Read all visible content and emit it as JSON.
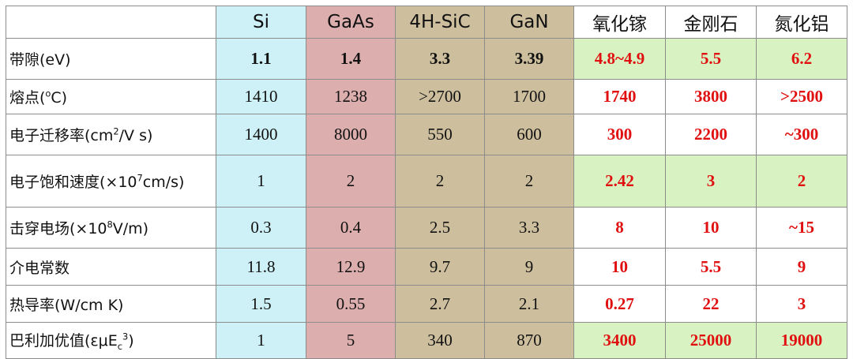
{
  "columns": [
    {
      "name": "Si",
      "style": "si",
      "font": "sans"
    },
    {
      "name": "GaAs",
      "style": "gaas",
      "font": "sans"
    },
    {
      "name": "4H-SiC",
      "style": "sic",
      "font": "sans"
    },
    {
      "name": "GaN",
      "style": "gan",
      "font": "sans"
    },
    {
      "name": "氧化镓",
      "style": "new",
      "font": "cjk"
    },
    {
      "name": "金刚石",
      "style": "new",
      "font": "cjk"
    },
    {
      "name": "氮化铝",
      "style": "new",
      "font": "cjk"
    }
  ],
  "rows": [
    {
      "label": "带隙(eV)",
      "values": [
        "1.1",
        "1.4",
        "3.3",
        "3.39",
        "4.8~4.9",
        "5.5",
        "6.2"
      ],
      "bold": true,
      "new_bg": true
    },
    {
      "label": "熔点(<sup>o</sup>C)",
      "values": [
        "1410",
        "1238",
        ">2700",
        "1700",
        "1740",
        "3800",
        ">2500"
      ],
      "bold": false,
      "new_bg": false
    },
    {
      "label": "电子迁移率(cm<sup>2</sup>/V s)",
      "values": [
        "1400",
        "8000",
        "550",
        "600",
        "300",
        "2200",
        "~300"
      ],
      "bold": false,
      "new_bg": false
    },
    {
      "label": "电子饱和速度(×10<sup>7</sup>cm/s)",
      "values": [
        "1",
        "2",
        "2",
        "2",
        "2.42",
        "3",
        "2"
      ],
      "bold": false,
      "new_bg": true
    },
    {
      "label": "击穿电场(×10<sup>8</sup>V/m)",
      "values": [
        "0.3",
        "0.4",
        "2.5",
        "3.3",
        "8",
        "10",
        "~15"
      ],
      "bold": false,
      "new_bg": false
    },
    {
      "label": "介电常数",
      "values": [
        "11.8",
        "12.9",
        "9.7",
        "9",
        "10",
        "5.5",
        "9"
      ],
      "bold": false,
      "new_bg": false
    },
    {
      "label": "热导率(W/cm K)",
      "values": [
        "1.5",
        "0.55",
        "2.7",
        "2.1",
        "0.27",
        "22",
        "3"
      ],
      "bold": false,
      "new_bg": false
    },
    {
      "label": "巴利加优值(εμE<sub>c</sub><sup>3</sup>)",
      "values": [
        "1",
        "5",
        "340",
        "870",
        "3400",
        "25000",
        "19000"
      ],
      "bold": false,
      "new_bg": true
    }
  ]
}
